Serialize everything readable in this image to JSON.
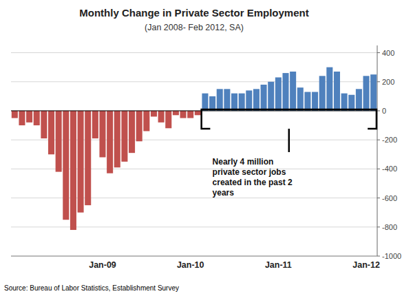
{
  "chart_data": {
    "type": "bar",
    "title": "Monthly Change in Private Sector Employment",
    "subtitle": "(Jan 2008- Feb 2012, SA)",
    "source": "Source: Bureau of Labor Statistics, Establishment Survey",
    "annotation": "Nearly 4 million\nprivate sector jobs\ncreated in the past 2\nyears",
    "categories": [
      null,
      null,
      null,
      null,
      null,
      null,
      null,
      null,
      null,
      null,
      null,
      null,
      "Jan-09",
      null,
      null,
      null,
      null,
      null,
      null,
      null,
      null,
      null,
      null,
      null,
      "Jan-10",
      null,
      null,
      null,
      null,
      null,
      null,
      null,
      null,
      null,
      null,
      null,
      "Jan-11",
      null,
      null,
      null,
      null,
      null,
      null,
      null,
      null,
      null,
      null,
      null,
      "Jan-12",
      null
    ],
    "values": [
      -50,
      -100,
      -80,
      -100,
      -190,
      -300,
      -420,
      -750,
      -820,
      -700,
      -650,
      -190,
      -320,
      -430,
      -390,
      -350,
      -290,
      -210,
      -140,
      -40,
      -80,
      -120,
      -30,
      -50,
      -50,
      -30,
      120,
      100,
      150,
      150,
      120,
      120,
      140,
      150,
      180,
      200,
      230,
      260,
      270,
      160,
      130,
      130,
      240,
      300,
      270,
      120,
      110,
      150,
      240,
      250
    ],
    "colors": [
      "#C0504D",
      "#C0504D",
      "#C0504D",
      "#C0504D",
      "#C0504D",
      "#C0504D",
      "#C0504D",
      "#C0504D",
      "#C0504D",
      "#C0504D",
      "#C0504D",
      "#C0504D",
      "#C0504D",
      "#C0504D",
      "#C0504D",
      "#C0504D",
      "#C0504D",
      "#C0504D",
      "#C0504D",
      "#C0504D",
      "#C0504D",
      "#C0504D",
      "#C0504D",
      "#C0504D",
      "#C0504D",
      "#C0504D",
      "#4F81BD",
      "#4F81BD",
      "#4F81BD",
      "#4F81BD",
      "#4F81BD",
      "#4F81BD",
      "#4F81BD",
      "#4F81BD",
      "#4F81BD",
      "#4F81BD",
      "#4F81BD",
      "#4F81BD",
      "#4F81BD",
      "#4F81BD",
      "#4F81BD",
      "#4F81BD",
      "#4F81BD",
      "#4F81BD",
      "#4F81BD",
      "#4F81BD",
      "#4F81BD",
      "#4F81BD",
      "#4F81BD",
      "#4F81BD"
    ],
    "ylim": [
      -1000,
      450
    ],
    "yticks": [
      -1000,
      -800,
      -600,
      -400,
      -200,
      0,
      200,
      400
    ],
    "grid": true
  }
}
